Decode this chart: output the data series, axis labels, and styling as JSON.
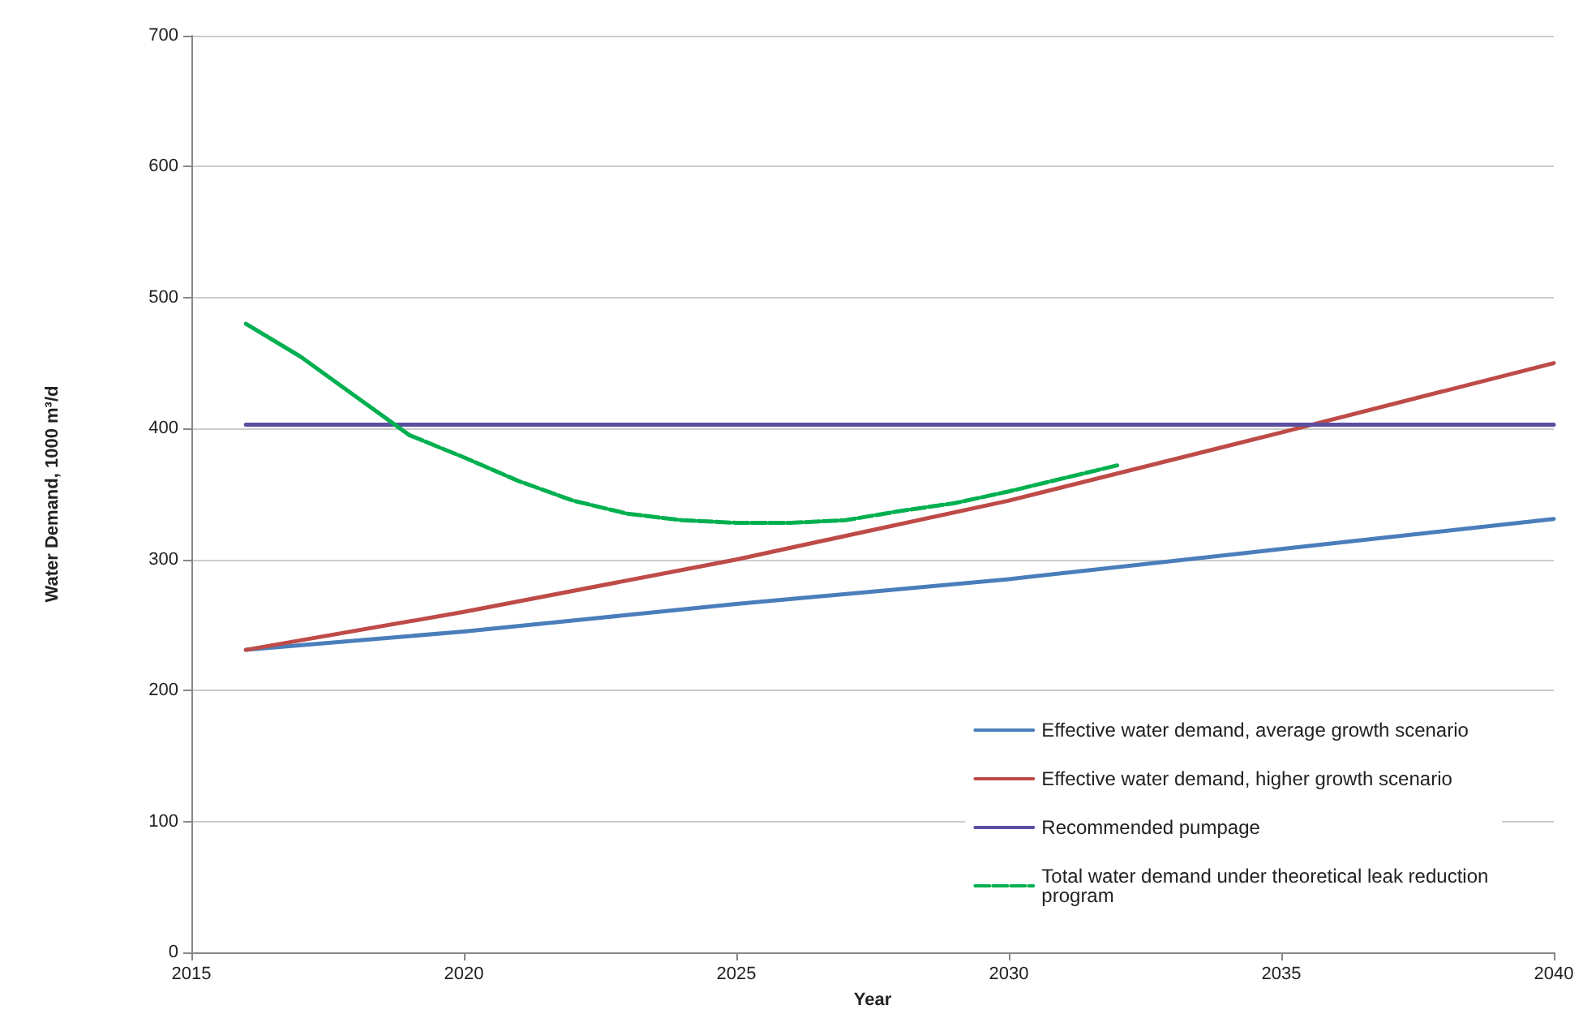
{
  "chart_data": {
    "type": "line",
    "xlabel": "Year",
    "ylabel": "Water Demand, 1000 m³/d",
    "xlim": [
      2015,
      2040
    ],
    "xticks": [
      2015,
      2020,
      2025,
      2030,
      2035,
      2040
    ],
    "ylim": [
      0,
      700
    ],
    "yticks": [
      0,
      100,
      200,
      300,
      400,
      500,
      600,
      700
    ],
    "grid": "y",
    "legend": "bottom right",
    "marker": "none",
    "series": [
      {
        "name": "Effective water demand, average growth scenario",
        "color": "#4a7ebb",
        "line_style": "solid",
        "x": [
          2016,
          2020,
          2025,
          2030,
          2035,
          2040
        ],
        "values": [
          231,
          245,
          266,
          285,
          308,
          331
        ]
      },
      {
        "name": "Effective water demand, higher growth scenario",
        "color": "#be4b48",
        "line_style": "solid",
        "x": [
          2016,
          2020,
          2025,
          2030,
          2035,
          2040
        ],
        "values": [
          231,
          260,
          300,
          345,
          397,
          450
        ]
      },
      {
        "name": "Recommended pumpage",
        "color": "#5b4fa0",
        "line_style": "solid",
        "x": [
          2016,
          2040
        ],
        "values": [
          403,
          403
        ]
      },
      {
        "color": "#00b050",
        "line_style": "solid",
        "x": [
          2016,
          2017,
          2018,
          2019
        ],
        "values": [
          480,
          455,
          425,
          395
        ]
      },
      {
        "name": "Total water demand under theoretical leak reduction program",
        "color": "#00b050",
        "line_style": "dashed",
        "x": [
          2019,
          2020,
          2021,
          2022,
          2023,
          2024,
          2025,
          2026,
          2027,
          2028,
          2029,
          2030,
          2031,
          2032
        ],
        "values": [
          395,
          378,
          360,
          345,
          335,
          330,
          328,
          328,
          330,
          337,
          343,
          352,
          362,
          372
        ]
      }
    ]
  }
}
